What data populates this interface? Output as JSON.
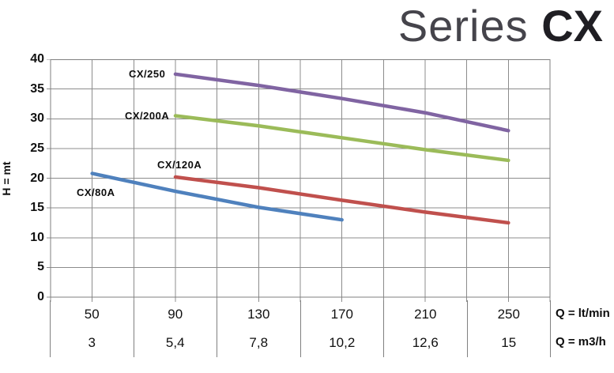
{
  "title": {
    "light": "Series",
    "bold": "CX"
  },
  "chart_data": {
    "type": "line",
    "title": "Series CX",
    "ylabel": "H = mt",
    "xlabel_primary": "Q = lt/min",
    "xlabel_secondary": "Q = m3/h",
    "grid": true,
    "legend": "inline-labels",
    "y_axis": {
      "min": 0,
      "max": 40,
      "gridline_step": 5,
      "tick_labels": [
        "40",
        "35",
        "30",
        "25",
        "20",
        "15",
        "10",
        "5",
        "0"
      ]
    },
    "x_axis": {
      "min": 30,
      "max": 270,
      "gridline_step": 20
    },
    "x_tick_values_ltmin": [
      50,
      90,
      130,
      170,
      210,
      250
    ],
    "x_tick_labels_ltmin": [
      "50",
      "90",
      "130",
      "170",
      "210",
      "250"
    ],
    "x_tick_labels_m3h": [
      "3",
      "5,4",
      "7,8",
      "10,2",
      "12,6",
      "15"
    ],
    "series": [
      {
        "name": "CX/80A",
        "color": "#4F81BD",
        "points": [
          [
            50,
            20.8
          ],
          [
            90,
            17.8
          ],
          [
            130,
            15.1
          ],
          [
            170,
            13.0
          ]
        ]
      },
      {
        "name": "CX/120A",
        "color": "#C0504D",
        "points": [
          [
            90,
            20.2
          ],
          [
            130,
            18.4
          ],
          [
            170,
            16.3
          ],
          [
            210,
            14.3
          ],
          [
            250,
            12.5
          ]
        ]
      },
      {
        "name": "CX/200A",
        "color": "#9BBB59",
        "points": [
          [
            90,
            30.5
          ],
          [
            130,
            28.8
          ],
          [
            170,
            26.8
          ],
          [
            210,
            24.8
          ],
          [
            250,
            23.0
          ]
        ]
      },
      {
        "name": "CX/250",
        "color": "#8064A2",
        "points": [
          [
            90,
            37.5
          ],
          [
            130,
            35.6
          ],
          [
            170,
            33.4
          ],
          [
            210,
            31.0
          ],
          [
            250,
            28.0
          ]
        ]
      }
    ]
  },
  "colors": {
    "gridline": "#8c8c8c",
    "plot_border": "#7f7f7f",
    "text": "#111111"
  }
}
